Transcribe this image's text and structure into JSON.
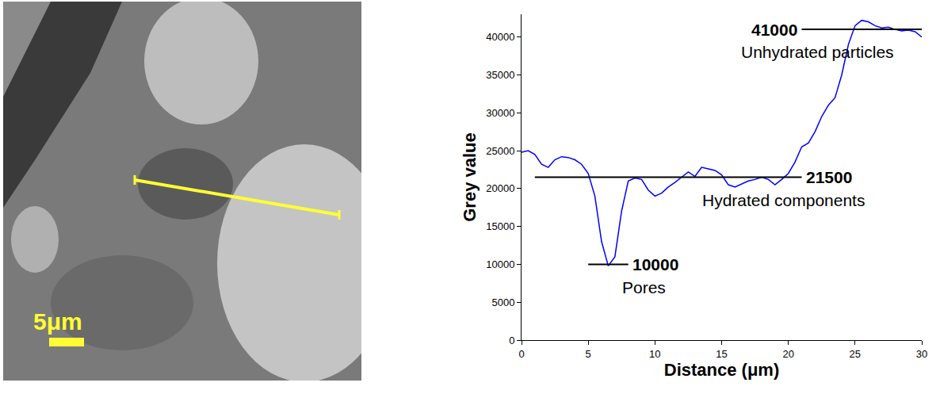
{
  "chart_data": {
    "type": "line",
    "x_label": "Distance (μm)",
    "y_label": "Grey value",
    "xlim": [
      0,
      30
    ],
    "xticks": [
      0,
      5,
      10,
      15,
      20,
      25,
      30
    ],
    "ylim": [
      0,
      43000
    ],
    "yticks": [
      0,
      5000,
      10000,
      15000,
      20000,
      25000,
      30000,
      35000,
      40000
    ],
    "grid": false,
    "series": [
      {
        "name": "Grey value",
        "color": "#0000ff",
        "x": [
          0,
          0.5,
          1,
          1.5,
          2,
          2.5,
          3,
          3.5,
          4,
          4.5,
          5,
          5.5,
          6,
          6.5,
          7,
          7.5,
          8,
          8.5,
          9,
          9.5,
          10,
          10.5,
          11,
          11.5,
          12,
          12.5,
          13,
          13.5,
          14,
          14.5,
          15,
          15.5,
          16,
          16.5,
          17,
          17.5,
          18,
          18.5,
          19,
          19.5,
          20,
          20.5,
          21,
          21.5,
          22,
          22.5,
          23,
          23.5,
          24,
          24.5,
          25,
          25.5,
          26,
          26.5,
          27,
          27.5,
          28,
          28.5,
          29,
          29.5,
          30
        ],
        "values": [
          24800,
          25000,
          24500,
          23200,
          22800,
          23800,
          24200,
          24100,
          23800,
          23200,
          22000,
          19000,
          13000,
          9800,
          11000,
          17000,
          21000,
          21400,
          21200,
          19800,
          19000,
          19400,
          20200,
          20800,
          21500,
          22200,
          21600,
          22800,
          22600,
          22400,
          21800,
          20500,
          20200,
          20600,
          21000,
          21200,
          21500,
          21200,
          20500,
          21200,
          22000,
          23500,
          25500,
          26000,
          27500,
          29500,
          31000,
          32000,
          35000,
          39000,
          41500,
          42200,
          42000,
          41500,
          41200,
          41300,
          41000,
          40800,
          40900,
          40700,
          40000
        ]
      }
    ],
    "reference_lines": [
      {
        "value": 41000,
        "label": "41000",
        "description": "Unhydrated particles",
        "x_start": 21,
        "x_end": 30,
        "color": "#000000"
      },
      {
        "value": 21500,
        "label": "21500",
        "description": "Hydrated components",
        "x_start": 1,
        "x_end": 21,
        "color": "#000000"
      },
      {
        "value": 10000,
        "label": "10000",
        "description": "Pores",
        "x_start": 5,
        "x_end": 8,
        "color": "#000000"
      }
    ]
  },
  "image": {
    "scale_bar_label": "5μm"
  }
}
